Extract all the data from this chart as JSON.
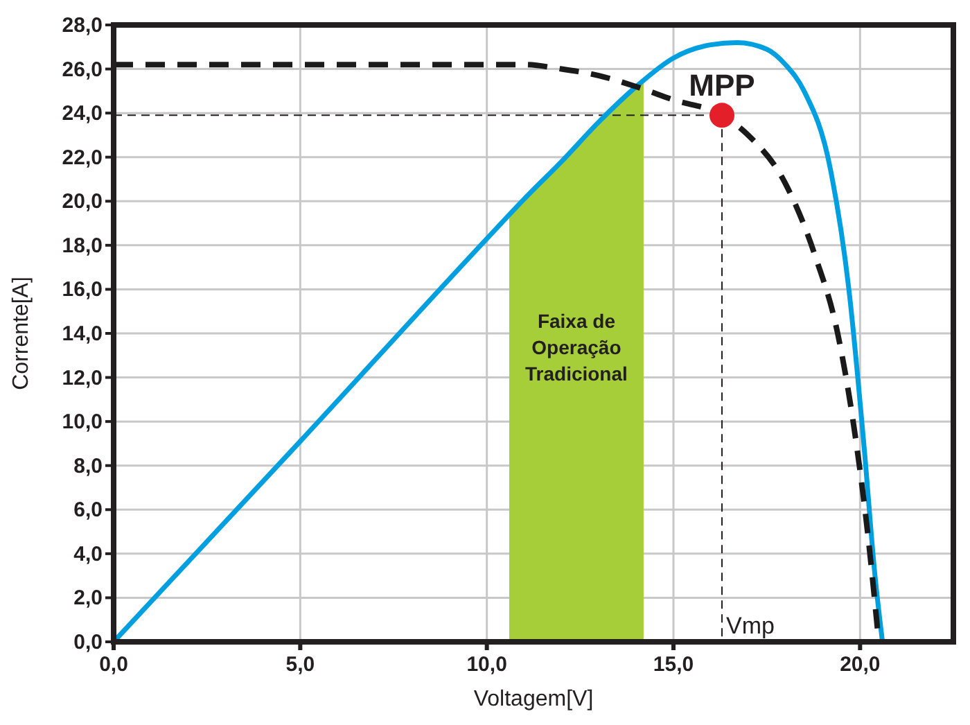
{
  "chart_data": {
    "type": "line",
    "xlabel": "Voltagem[V]",
    "ylabel": "Corrente[A]",
    "xlim": [
      0,
      22.5
    ],
    "ylim": [
      0,
      28
    ],
    "xticks": [
      {
        "value": 0,
        "label": "0,0"
      },
      {
        "value": 5,
        "label": "5,0"
      },
      {
        "value": 10,
        "label": "10,0"
      },
      {
        "value": 15,
        "label": "15,0"
      },
      {
        "value": 20,
        "label": "20,0"
      }
    ],
    "yticks": [
      {
        "value": 0,
        "label": "0,0"
      },
      {
        "value": 2,
        "label": "2,0"
      },
      {
        "value": 4,
        "label": "4,0"
      },
      {
        "value": 6,
        "label": "6,0"
      },
      {
        "value": 8,
        "label": "8,0"
      },
      {
        "value": 10,
        "label": "10,0"
      },
      {
        "value": 12,
        "label": "12,0"
      },
      {
        "value": 14,
        "label": "14,0"
      },
      {
        "value": 16,
        "label": "16,0"
      },
      {
        "value": 18,
        "label": "18,0"
      },
      {
        "value": 20,
        "label": "20,0"
      },
      {
        "value": 22,
        "label": "22,0"
      },
      {
        "value": 24,
        "label": "24,0"
      },
      {
        "value": 26,
        "label": "26,0"
      },
      {
        "value": 28,
        "label": "28,0"
      }
    ],
    "grid": true,
    "series": [
      {
        "color": "#009fdf",
        "line_style": "solid",
        "x": [
          0,
          5,
          10,
          11,
          12,
          13,
          14,
          15,
          16,
          16.7,
          17.5,
          18,
          18.5,
          19.2,
          19.7,
          20.1,
          20.4,
          20.6
        ],
        "values": [
          0,
          9.1,
          18.3,
          20.1,
          21.8,
          23.6,
          25.2,
          26.5,
          27.1,
          27.2,
          26.9,
          26.2,
          25.0,
          21.5,
          16,
          9,
          3,
          0
        ]
      },
      {
        "color": "#1a1a1a",
        "line_style": "dashed",
        "x": [
          0,
          11,
          12,
          13,
          14,
          15,
          16.3,
          17,
          18,
          18.8,
          19.4,
          19.9,
          20.2,
          20.5
        ],
        "values": [
          26.2,
          26.2,
          26.0,
          25.7,
          25.2,
          24.6,
          23.9,
          23.0,
          20.8,
          17.5,
          14,
          9,
          5,
          0
        ]
      },
      {
        "type": "scatter",
        "color": "#e3202a",
        "marker": "circle",
        "x": [
          16.3
        ],
        "values": [
          23.9
        ]
      }
    ],
    "bands": [
      {
        "axis": "x",
        "from": 10.6,
        "to": 14.2,
        "label": "Faixa de Operação Tradicional",
        "color": "#a6ce39"
      }
    ],
    "ref_lines": [
      {
        "axis": "y",
        "value": 23.9,
        "line_style": "dashed"
      },
      {
        "axis": "x",
        "value": 16.3,
        "label": "Vmp",
        "line_style": "dashed"
      }
    ],
    "annotations": [
      {
        "text": "MPP",
        "x": 16.3,
        "y": 23.9
      }
    ]
  }
}
